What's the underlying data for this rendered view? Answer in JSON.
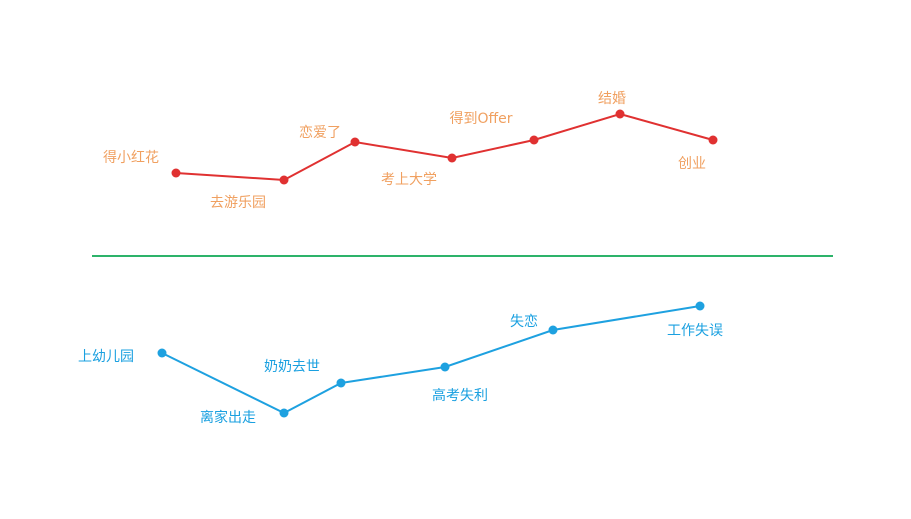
{
  "colors": {
    "good_line": "#e03131",
    "good_label": "#f0a060",
    "divider": "#2db36a",
    "bad_line": "#1ea1e0",
    "bad_label": "#1aa0e0",
    "background": "#ffffff"
  },
  "good_events": [
    {
      "label": "得小红花"
    },
    {
      "label": "去游乐园"
    },
    {
      "label": "恋爱了"
    },
    {
      "label": "考上大学"
    },
    {
      "label": "得到Offer"
    },
    {
      "label": "结婚"
    },
    {
      "label": "创业"
    }
  ],
  "bad_events": [
    {
      "label": "上幼儿园"
    },
    {
      "label": "离家出走"
    },
    {
      "label": "奶奶去世"
    },
    {
      "label": "高考失利"
    },
    {
      "label": "失恋"
    },
    {
      "label": "工作失误"
    }
  ]
}
